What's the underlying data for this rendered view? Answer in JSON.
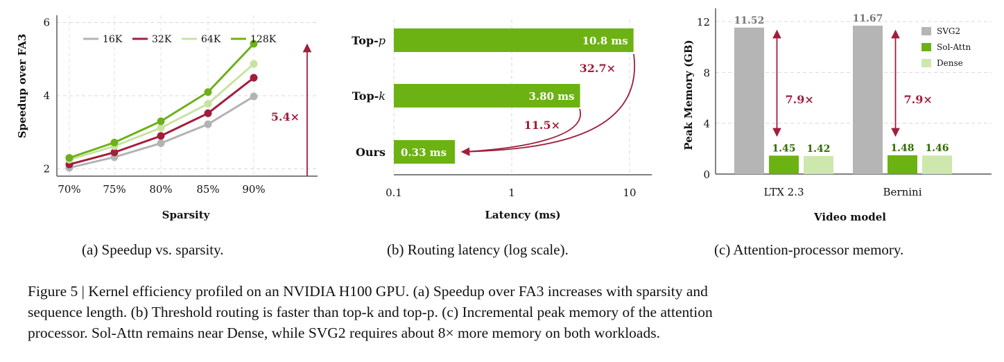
{
  "colors": {
    "s16K": "#b3b3b3",
    "s32K": "#a01e3c",
    "s64K": "#c7e3a0",
    "s128K": "#6db01a",
    "green": "#6cb213",
    "gray": "#b5b5b5",
    "light_green": "#cde7ad",
    "annot": "#a01e3c",
    "dark_green_text": "#2f6b00",
    "gray_text": "#777777"
  },
  "subcaptions": {
    "a": "(a) Speedup vs. sparsity.",
    "b": "(b) Routing latency (log scale).",
    "c": "(c) Attention-processor memory."
  },
  "caption_lines": [
    "Figure 5 | Kernel efficiency profiled on an NVIDIA H100 GPU. (a) Speedup over FA3 increases with sparsity and",
    "sequence length. (b) Threshold routing is faster than top-k and top-p. (c) Incremental peak memory of the attention",
    "processor. Sol-Attn remains near Dense, while SVG2 requires about 8× more memory on both workloads."
  ],
  "chart_data": [
    {
      "type": "line",
      "xlabel": "Sparsity",
      "ylabel": "Speedup over FA3",
      "x": [
        "70%",
        "75%",
        "80%",
        "85%",
        "90%"
      ],
      "yticks": [
        2,
        4,
        6
      ],
      "ylim": [
        1.8,
        6.2
      ],
      "grid": true,
      "legend": "top",
      "series": [
        {
          "name": "16K",
          "values": [
            2.03,
            2.32,
            2.7,
            3.22,
            3.98
          ],
          "color": "#b3b3b3"
        },
        {
          "name": "32K",
          "values": [
            2.12,
            2.45,
            2.9,
            3.52,
            4.49
          ],
          "color": "#a01e3c"
        },
        {
          "name": "64K",
          "values": [
            2.25,
            2.62,
            3.12,
            3.78,
            4.87
          ],
          "color": "#c7e3a0"
        },
        {
          "name": "128K",
          "values": [
            2.3,
            2.72,
            3.3,
            4.1,
            5.42
          ],
          "color": "#6db01a"
        }
      ],
      "annotation": "5.4×"
    },
    {
      "type": "bar",
      "orientation": "horizontal",
      "scale": "log",
      "xlabel": "Latency (ms)",
      "xticks": [
        0.1,
        1,
        10
      ],
      "xlim": [
        0.1,
        13
      ],
      "grid": true,
      "categories": [
        "Top-p",
        "Top-k",
        "Ours"
      ],
      "values": [
        10.8,
        3.8,
        0.33
      ],
      "value_labels": [
        "10.8 ms",
        "3.80 ms",
        "0.33 ms"
      ],
      "annotations": [
        "32.7×",
        "11.5×"
      ]
    },
    {
      "type": "bar",
      "xlabel": "Video model",
      "ylabel": "Peak Memory (GB)",
      "categories": [
        "LTX 2.3",
        "Bernini"
      ],
      "yticks": [
        0,
        4,
        8,
        12
      ],
      "ylim": [
        0,
        12.6
      ],
      "grid": true,
      "legend": "top-right",
      "series": [
        {
          "name": "SVG2",
          "values": [
            11.52,
            11.67
          ],
          "labels": [
            "11.52",
            "11.67"
          ],
          "color": "#b5b5b5"
        },
        {
          "name": "Sol-Attn",
          "values": [
            1.45,
            1.48
          ],
          "labels": [
            "1.45",
            "1.48"
          ],
          "color": "#6cb213"
        },
        {
          "name": "Dense",
          "values": [
            1.42,
            1.46
          ],
          "labels": [
            "1.42",
            "1.46"
          ],
          "color": "#cde7ad"
        }
      ],
      "annotations": [
        "7.9×",
        "7.9×"
      ]
    }
  ]
}
